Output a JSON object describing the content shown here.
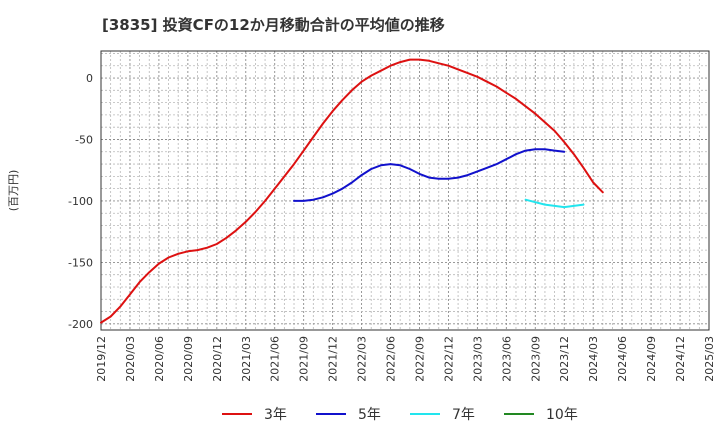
{
  "chart_data": {
    "type": "line",
    "title": "[3835]  投資CFの12か月移動合計の平均値の推移",
    "ylabel": "(百万円)",
    "xlabel": "",
    "ylim": [
      -205,
      22
    ],
    "y_ticks": [
      0,
      -50,
      -100,
      -150,
      -200
    ],
    "x_ticks": [
      "2019/12",
      "2020/03",
      "2020/06",
      "2020/09",
      "2020/12",
      "2021/03",
      "2021/06",
      "2021/09",
      "2021/12",
      "2022/03",
      "2022/06",
      "2022/09",
      "2022/12",
      "2023/03",
      "2023/06",
      "2023/09",
      "2023/12",
      "2024/03",
      "2024/06",
      "2024/09",
      "2024/12",
      "2025/03"
    ],
    "grid": true,
    "legend_position": "bottom",
    "series": [
      {
        "name": "3年",
        "color": "#dd1111",
        "start": "2019/12",
        "values": [
          -199,
          -194,
          -186,
          -176,
          -166,
          -158,
          -151,
          -146,
          -143,
          -141,
          -140,
          -138,
          -135,
          -130,
          -124,
          -117,
          -109,
          -100,
          -90,
          -80,
          -70,
          -59,
          -48,
          -37,
          -27,
          -18,
          -10,
          -3,
          2,
          6,
          10,
          13,
          15,
          15,
          14,
          12,
          10,
          7,
          4,
          1,
          -3,
          -7,
          -12,
          -17,
          -23,
          -29,
          -36,
          -43,
          -52,
          -62,
          -73,
          -85,
          -93
        ]
      },
      {
        "name": "5年",
        "color": "#1111cc",
        "start": "2021/08",
        "values": [
          -100,
          -100,
          -99,
          -97,
          -94,
          -90,
          -85,
          -79,
          -74,
          -71,
          -70,
          -71,
          -74,
          -78,
          -81,
          -82,
          -82,
          -81,
          -79,
          -76,
          -73,
          -70,
          -66,
          -62,
          -59,
          -58,
          -58,
          -59,
          -60
        ]
      },
      {
        "name": "7年",
        "color": "#22e5ee",
        "start": "2023/08",
        "values": [
          -99,
          -101,
          -103,
          -104,
          -105,
          -104,
          -103
        ]
      },
      {
        "name": "10年",
        "color": "#228822",
        "start": "2023/08",
        "values": []
      }
    ]
  }
}
